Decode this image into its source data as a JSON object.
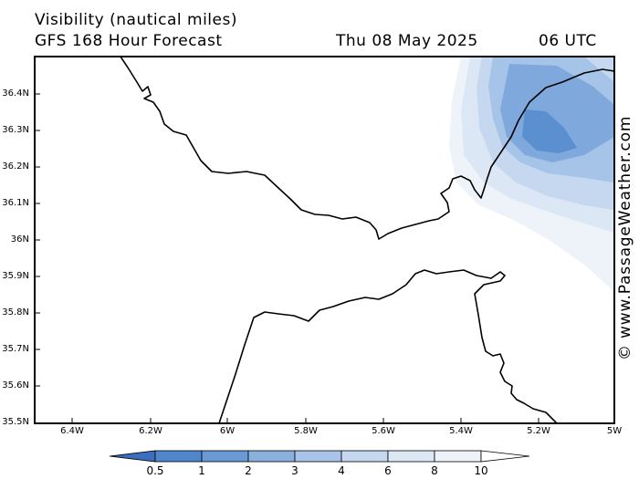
{
  "header": {
    "title": "Visibility (nautical miles)",
    "subtitle": "GFS 168 Hour Forecast",
    "date": "Thu 08 May 2025",
    "time": "06 UTC"
  },
  "map": {
    "lat_labels": [
      "36.4N",
      "36.3N",
      "36.2N",
      "36.1N",
      "36N",
      "35.9N",
      "35.8N",
      "35.7N",
      "35.6N",
      "35.5N"
    ],
    "lon_labels": [
      "6.4W",
      "6.2W",
      "6W",
      "5.8W",
      "5.6W",
      "5.4W",
      "5.2W",
      "5W"
    ],
    "watermark": "© www.PassageWeather.com",
    "shading_colors": [
      "#3a6fbf",
      "#5a8fd0",
      "#7fa9dc",
      "#a6c3e8",
      "#c6d8f0",
      "#dce7f5",
      "#eef3fa"
    ]
  },
  "colorbar": {
    "labels": [
      "0.5",
      "1",
      "2",
      "3",
      "4",
      "6",
      "8",
      "10"
    ],
    "colors": [
      "#3a6fbf",
      "#4f86cc",
      "#6a9ad5",
      "#8ab0de",
      "#a9c4e8",
      "#c6d8f0",
      "#dde8f5",
      "#eef3fa",
      "#ffffff"
    ]
  }
}
